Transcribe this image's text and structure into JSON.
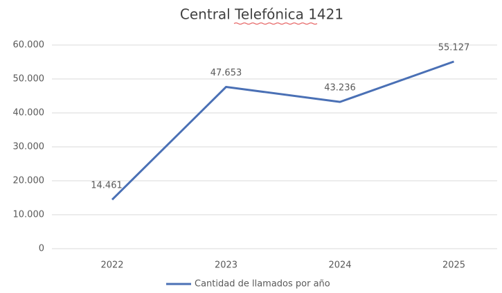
{
  "chart_data": {
    "type": "line",
    "title": "Central Telefónica 1421",
    "categories": [
      "2022",
      "2023",
      "2024",
      "2025"
    ],
    "series": [
      {
        "name": "Cantidad de llamados por año",
        "color": "#4a70b5",
        "values": [
          14461,
          47653,
          43236,
          55127
        ],
        "value_labels": [
          "14.461",
          "47.653",
          "43.236",
          "55.127"
        ]
      }
    ],
    "ylim": [
      0,
      60000
    ],
    "yticks": [
      0,
      {
        "value": 10000,
        "label": "10.000"
      },
      {
        "value": 20000,
        "label": "20.000"
      },
      {
        "value": 30000,
        "label": "30.000"
      },
      {
        "value": 40000,
        "label": "40.000"
      },
      {
        "value": 50000,
        "label": "50.000"
      },
      {
        "value": 60000,
        "label": "60.000"
      }
    ],
    "grid": true,
    "legend": "bottom"
  }
}
